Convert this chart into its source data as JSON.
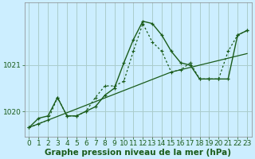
{
  "xlabel": "Graphe pression niveau de la mer (hPa)",
  "bg_color": "#cceeff",
  "grid_color": "#aacccc",
  "line_color": "#1a5c1a",
  "ylim": [
    1019.45,
    1022.35
  ],
  "xlim": [
    -0.5,
    23.5
  ],
  "yticks": [
    1020,
    1021
  ],
  "xticks": [
    0,
    1,
    2,
    3,
    4,
    5,
    6,
    7,
    8,
    9,
    10,
    11,
    12,
    13,
    14,
    15,
    16,
    17,
    18,
    19,
    20,
    21,
    22,
    23
  ],
  "series_main": [
    1019.65,
    1019.85,
    1019.9,
    1020.3,
    1019.9,
    1019.9,
    1020.0,
    1020.1,
    1020.35,
    1020.5,
    1021.05,
    1021.55,
    1021.95,
    1021.9,
    1021.65,
    1021.3,
    1021.05,
    1021.0,
    1020.7,
    1020.7,
    1020.7,
    1020.7,
    1021.65,
    1021.75
  ],
  "series_trend": [
    1019.65,
    1019.73,
    1019.81,
    1019.89,
    1019.97,
    1020.05,
    1020.13,
    1020.21,
    1020.29,
    1020.37,
    1020.45,
    1020.53,
    1020.61,
    1020.69,
    1020.77,
    1020.85,
    1020.9,
    1020.95,
    1021.0,
    1021.05,
    1021.1,
    1021.15,
    1021.2,
    1021.25
  ],
  "series_dotted": [
    1019.65,
    1019.73,
    1019.81,
    1020.3,
    1019.9,
    1019.9,
    1020.0,
    1020.3,
    1020.55,
    1020.55,
    1020.65,
    1021.3,
    1021.9,
    1021.5,
    1021.3,
    1020.85,
    1020.9,
    1021.05,
    1020.7,
    1020.7,
    1020.7,
    1021.3,
    1021.65,
    1021.75
  ],
  "xlabel_fontsize": 7.5,
  "tick_fontsize": 6.5
}
